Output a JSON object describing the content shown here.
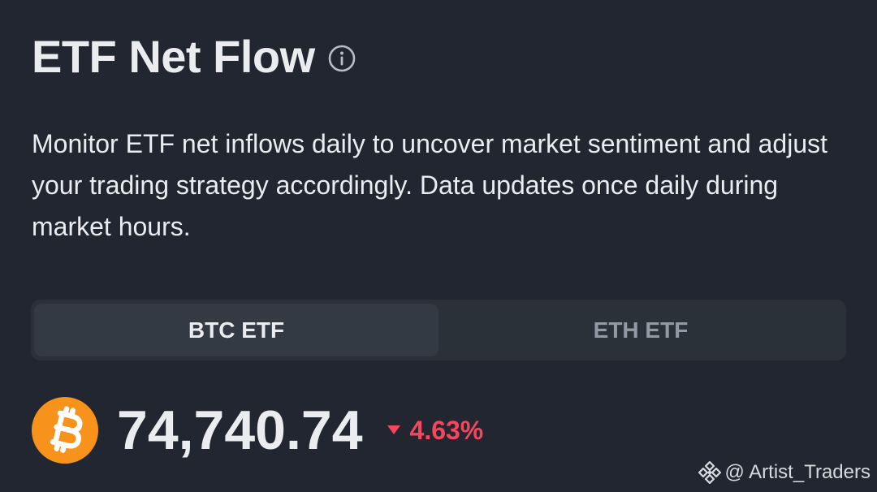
{
  "header": {
    "title": "ETF Net Flow",
    "info_icon": "info-circle-icon"
  },
  "description": "Monitor ETF net inflows daily to uncover market sentiment and adjust your trading strategy accordingly. Data updates once daily during market hours.",
  "tabs": [
    {
      "label": "BTC ETF",
      "active": true
    },
    {
      "label": "ETH ETF",
      "active": false
    }
  ],
  "ticker": {
    "coin_icon": "bitcoin-icon",
    "price": "74,740.74",
    "change_icon": "triangle-down-icon",
    "change": "4.63%",
    "change_color": "#f6465d",
    "coin_color": "#f7931a"
  },
  "watermark": {
    "icon": "binance-logo-icon",
    "text": "@ Artist_Traders"
  },
  "colors": {
    "background": "#222630",
    "tab_bar": "#2b3139",
    "tab_active": "#333a44",
    "text_primary": "#eaecef",
    "text_muted": "#929aa5"
  }
}
